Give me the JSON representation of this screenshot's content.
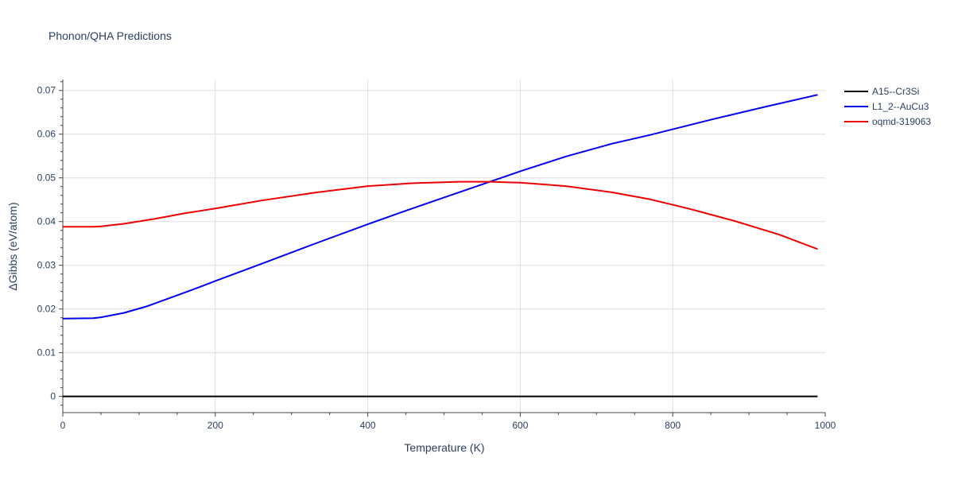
{
  "chart_data": {
    "type": "line",
    "title": "Phonon/QHA Predictions",
    "xlabel": "Temperature (K)",
    "ylabel": "ΔGibbs (eV/atom)",
    "xlim": [
      0,
      1000
    ],
    "ylim": [
      -0.0037,
      0.0725
    ],
    "xticks": [
      0,
      200,
      400,
      600,
      800,
      1000
    ],
    "yticks": [
      0,
      0.01,
      0.02,
      0.03,
      0.04,
      0.05,
      0.06,
      0.07
    ],
    "xtick_labels": [
      "0",
      "200",
      "400",
      "600",
      "800",
      "1000"
    ],
    "ytick_labels": [
      "0",
      "0.01",
      "0.02",
      "0.03",
      "0.04",
      "0.05",
      "0.06",
      "0.07"
    ],
    "grid": true,
    "legend_position": "top-right",
    "series": [
      {
        "name": "A15--Cr3Si",
        "color": "#000000",
        "x": [
          0,
          990
        ],
        "y": [
          0.0,
          0.0
        ]
      },
      {
        "name": "L1_2--AuCu3",
        "color": "#0000ee",
        "x": [
          0,
          40,
          50,
          80,
          110,
          140,
          170,
          200,
          260,
          330,
          400,
          460,
          530,
          600,
          660,
          720,
          770,
          850,
          920,
          990
        ],
        "y": [
          0.0178,
          0.0179,
          0.0181,
          0.0191,
          0.0206,
          0.0225,
          0.0244,
          0.0264,
          0.0303,
          0.0349,
          0.0394,
          0.0431,
          0.0473,
          0.0515,
          0.0549,
          0.0578,
          0.0598,
          0.0633,
          0.0662,
          0.069
        ]
      },
      {
        "name": "oqmd-319063",
        "color": "#ee0000",
        "x": [
          0,
          40,
          50,
          80,
          120,
          160,
          200,
          260,
          330,
          400,
          460,
          520,
          560,
          600,
          660,
          720,
          770,
          820,
          880,
          940,
          990
        ],
        "y": [
          0.0388,
          0.0388,
          0.0389,
          0.0395,
          0.0406,
          0.0419,
          0.043,
          0.0448,
          0.0466,
          0.0481,
          0.0488,
          0.0491,
          0.0491,
          0.0489,
          0.0481,
          0.0467,
          0.0451,
          0.043,
          0.0402,
          0.037,
          0.0337
        ]
      }
    ]
  }
}
